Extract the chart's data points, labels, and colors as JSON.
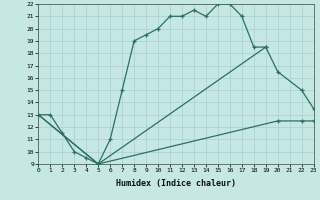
{
  "xlabel": "Humidex (Indice chaleur)",
  "bg_color": "#c5e8e5",
  "grid_color": "#aacfcc",
  "line_color": "#2a7060",
  "xlim": [
    0,
    23
  ],
  "ylim": [
    9,
    22
  ],
  "xticks": [
    0,
    1,
    2,
    3,
    4,
    5,
    6,
    7,
    8,
    9,
    10,
    11,
    12,
    13,
    14,
    15,
    16,
    17,
    18,
    19,
    20,
    21,
    22,
    23
  ],
  "yticks": [
    9,
    10,
    11,
    12,
    13,
    14,
    15,
    16,
    17,
    18,
    19,
    20,
    21,
    22
  ],
  "line1_x": [
    0,
    1,
    2,
    3,
    4,
    5,
    6,
    7,
    8,
    9,
    10,
    11,
    12,
    13,
    14,
    15,
    16,
    17,
    18,
    19
  ],
  "line1_y": [
    13,
    13,
    11.5,
    10,
    9.5,
    9,
    11,
    15,
    19,
    19.5,
    20,
    21,
    21,
    21.5,
    21,
    22,
    22,
    21,
    18.5,
    18.5
  ],
  "line2_x": [
    0,
    5,
    19,
    20,
    22,
    23
  ],
  "line2_y": [
    13,
    9,
    18.5,
    16.5,
    15,
    13.5
  ],
  "line3_x": [
    0,
    5,
    20,
    22,
    23
  ],
  "line3_y": [
    13,
    9,
    12.5,
    12.5,
    12.5
  ]
}
